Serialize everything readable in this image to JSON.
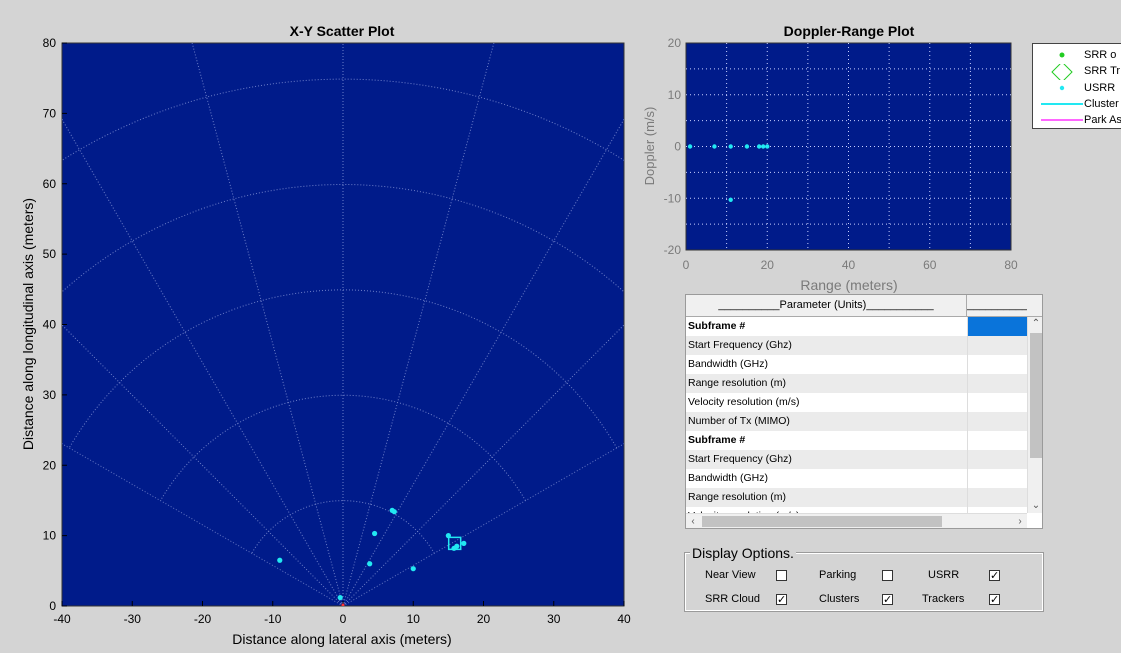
{
  "xy_plot": {
    "title": "X-Y Scatter Plot",
    "xlabel": "Distance along lateral axis (meters)",
    "ylabel": "Distance along longitudinal axis (meters)"
  },
  "dr_plot": {
    "title": "Doppler-Range Plot",
    "xlabel": "Range (meters)",
    "ylabel": "Doppler (m/s)"
  },
  "legend": {
    "items": [
      {
        "label": "SRR o",
        "icon": "green-dot-marker-icon"
      },
      {
        "label": "SRR Tr",
        "icon": "green-diamond-marker-icon"
      },
      {
        "label": "USRR",
        "icon": "cyan-dot-marker-icon"
      },
      {
        "label": "Cluster",
        "icon": "cyan-line-icon"
      },
      {
        "label": "Park As",
        "icon": "magenta-line-icon"
      }
    ]
  },
  "colors": {
    "plot_bg": "#001b8a",
    "grid": "#6d7fc9",
    "cyan": "#22e8f2",
    "green": "#22cc22",
    "magenta": "#ff66ff",
    "selection": "#0a74da"
  },
  "chart_data": [
    {
      "type": "scatter",
      "title": "X-Y Scatter Plot",
      "xlabel": "Distance along lateral axis (meters)",
      "ylabel": "Distance along longitudinal axis (meters)",
      "xlim": [
        -40,
        40
      ],
      "ylim": [
        0,
        80
      ],
      "xticks": [
        -40,
        -30,
        -20,
        -10,
        0,
        10,
        20,
        30,
        40
      ],
      "yticks": [
        0,
        10,
        20,
        30,
        40,
        50,
        60,
        70,
        80
      ],
      "grid": "polar",
      "series": [
        {
          "name": "USRR",
          "color": "#22e8f2",
          "x": [
            -9,
            -0.4,
            3.8,
            4.5,
            7,
            7.3,
            10,
            15,
            15.8,
            16.2,
            17.2
          ],
          "y": [
            6.5,
            1.2,
            6,
            10.3,
            13.6,
            13.4,
            5.3,
            10,
            8.2,
            8.5,
            8.9
          ]
        }
      ],
      "clusters": [
        {
          "x": 15.9,
          "y": 8.9
        }
      ]
    },
    {
      "type": "scatter",
      "title": "Doppler-Range Plot",
      "xlabel": "Range (meters)",
      "ylabel": "Doppler (m/s)",
      "xlim": [
        0,
        80
      ],
      "ylim": [
        -20,
        20
      ],
      "xticks": [
        0,
        20,
        40,
        60,
        80
      ],
      "yticks": [
        -20,
        -10,
        0,
        10,
        20
      ],
      "grid": true,
      "legend": "right",
      "series": [
        {
          "name": "USRR",
          "color": "#22e8f2",
          "x": [
            1,
            7,
            11,
            15,
            18,
            19,
            20,
            11
          ],
          "y": [
            0,
            0,
            0,
            0,
            0,
            0,
            0,
            -10.3
          ]
        }
      ]
    }
  ],
  "param_table": {
    "header_param": "__________Parameter (Units)___________",
    "header_value": "__________",
    "rows": [
      {
        "label": "Subframe #",
        "bold": true,
        "selected": true
      },
      {
        "label": "Start Frequency (Ghz)"
      },
      {
        "label": "Bandwidth (GHz)"
      },
      {
        "label": "Range resolution (m)"
      },
      {
        "label": "Velocity resolution (m/s)"
      },
      {
        "label": "Number of Tx (MIMO)"
      },
      {
        "label": "Subframe #",
        "bold": true
      },
      {
        "label": "Start Frequency (Ghz)"
      },
      {
        "label": "Bandwidth (GHz)"
      },
      {
        "label": "Range resolution (m)"
      },
      {
        "label": "Velocity resolution (m/s)"
      }
    ]
  },
  "display_options": {
    "title": "Display Options.",
    "items": [
      {
        "label": "Near View",
        "checked": false
      },
      {
        "label": "Parking",
        "checked": false
      },
      {
        "label": "USRR",
        "checked": true
      },
      {
        "label": "SRR Cloud",
        "checked": true
      },
      {
        "label": "Clusters",
        "checked": true
      },
      {
        "label": "Trackers",
        "checked": true
      }
    ]
  }
}
